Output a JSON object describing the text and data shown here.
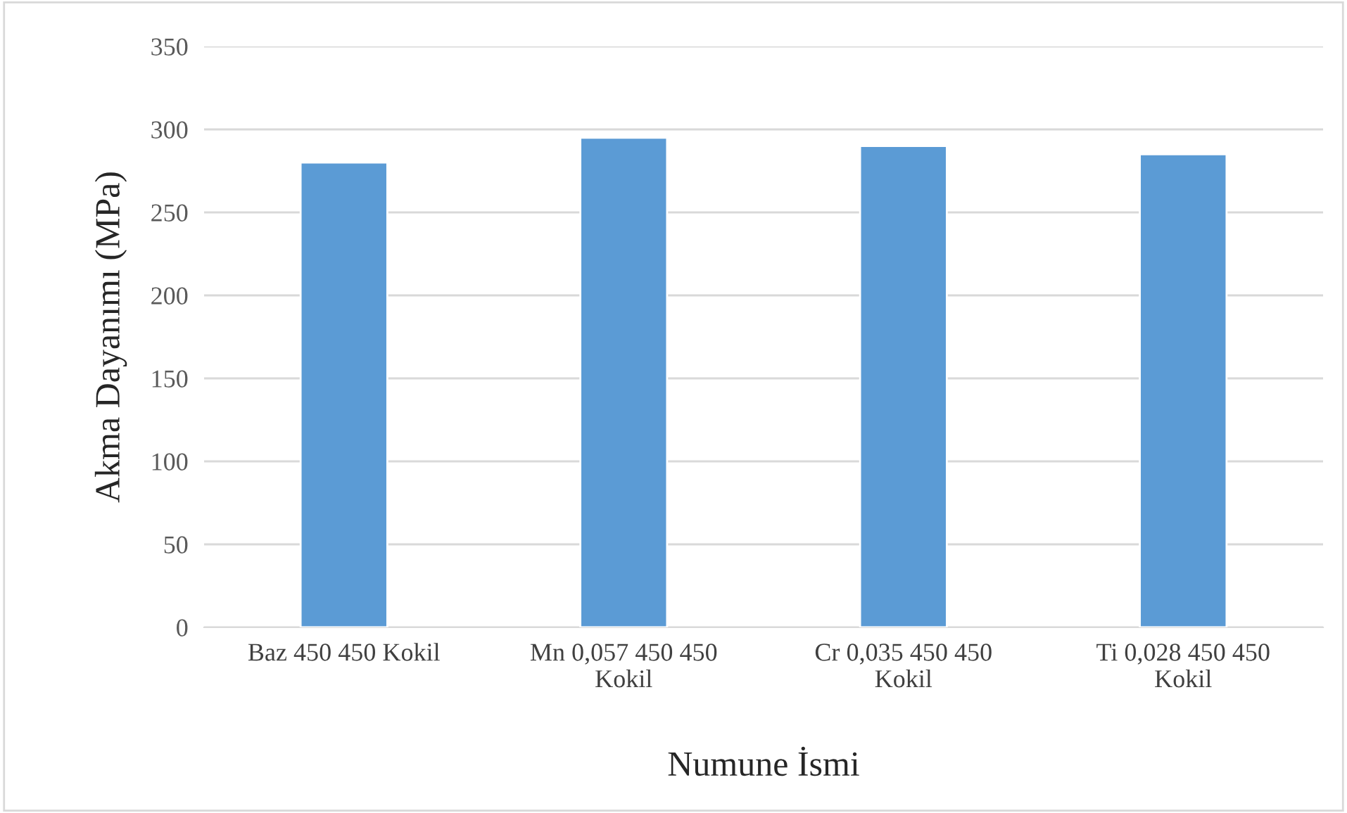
{
  "chart_data": {
    "type": "bar",
    "xlabel": "Numune İsmi",
    "ylabel": "Akma Dayanımı (MPa)",
    "categories": [
      "Baz 450 450 Kokil",
      "Mn 0,057 450 450\nKokil",
      "Cr 0,035 450 450\nKokil",
      "Ti 0,028 450 450\nKokil"
    ],
    "values": [
      280,
      295,
      290,
      285
    ],
    "color": "#5b9bd5",
    "ylim": [
      0,
      350
    ],
    "yticks": [
      0,
      50,
      100,
      150,
      200,
      250,
      300,
      350
    ],
    "grid": "y"
  }
}
